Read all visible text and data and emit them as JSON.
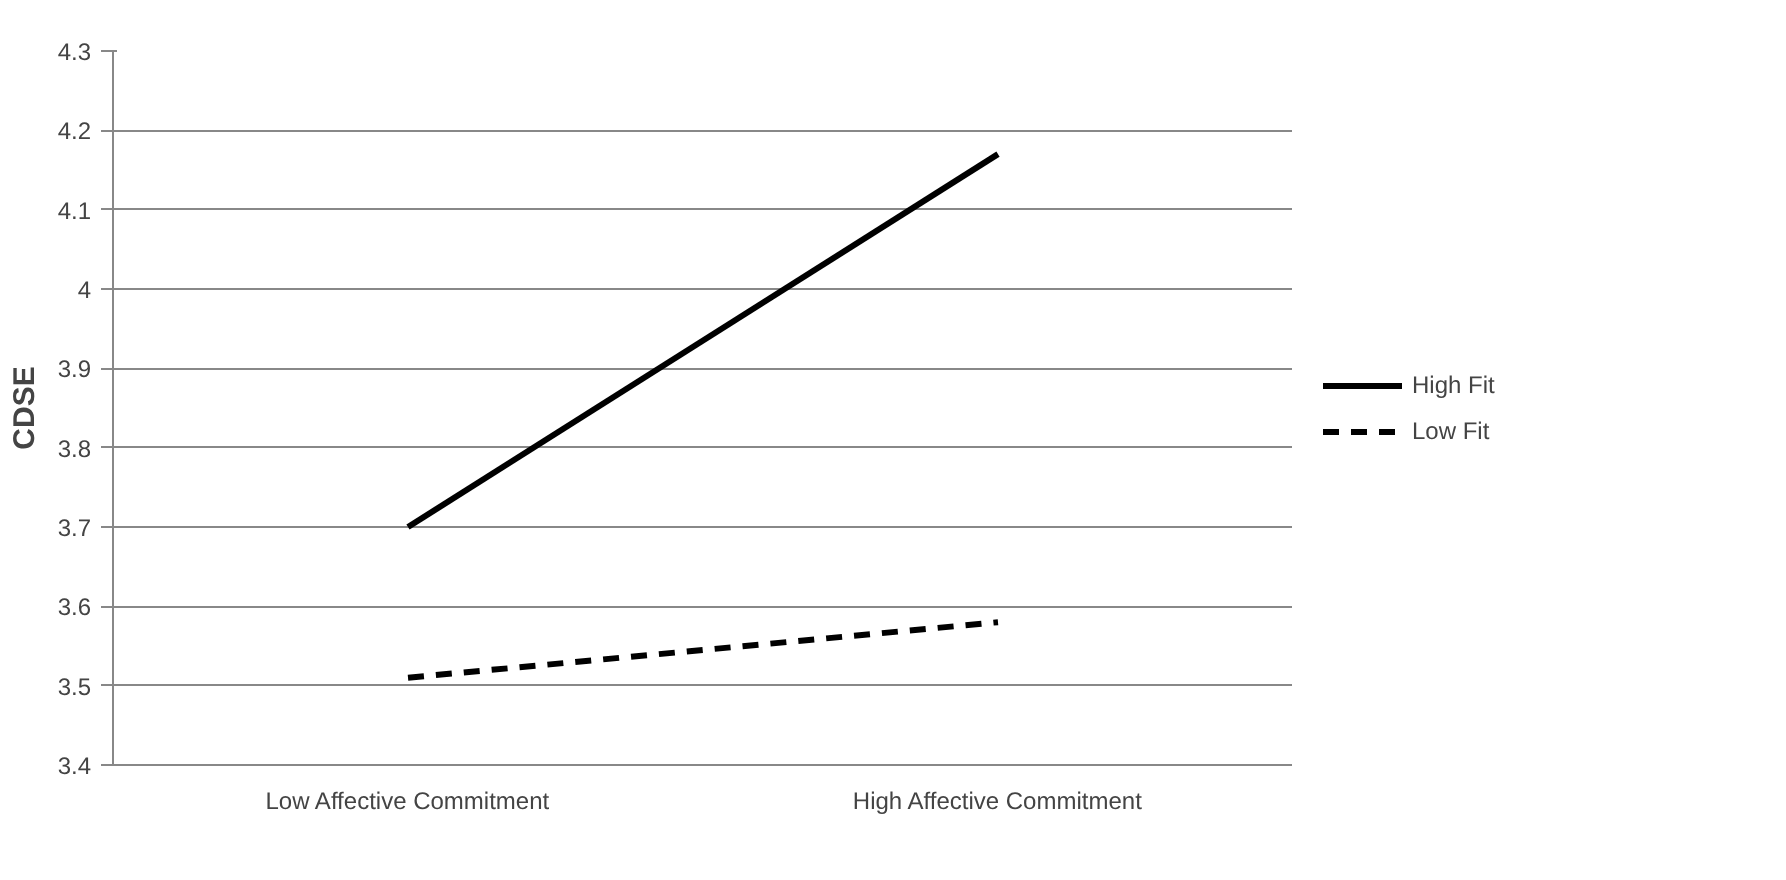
{
  "chart_data": {
    "type": "line",
    "ylabel": "CDSE",
    "categories": [
      "Low Affective Commitment",
      "High Affective Commitment"
    ],
    "series": [
      {
        "name": "High Fit",
        "color": "#000000",
        "values": [
          3.7,
          4.17
        ],
        "line_style": "solid"
      },
      {
        "name": "Low Fit",
        "color": "#000000",
        "values": [
          3.51,
          3.58
        ],
        "line_style": "dashed"
      }
    ],
    "ylim": [
      3.4,
      4.3
    ],
    "yticks": [
      3.4,
      3.5,
      3.6,
      3.7,
      3.8,
      3.9,
      4,
      4.1,
      4.2,
      4.3
    ],
    "grid": "y",
    "legend": "right"
  }
}
